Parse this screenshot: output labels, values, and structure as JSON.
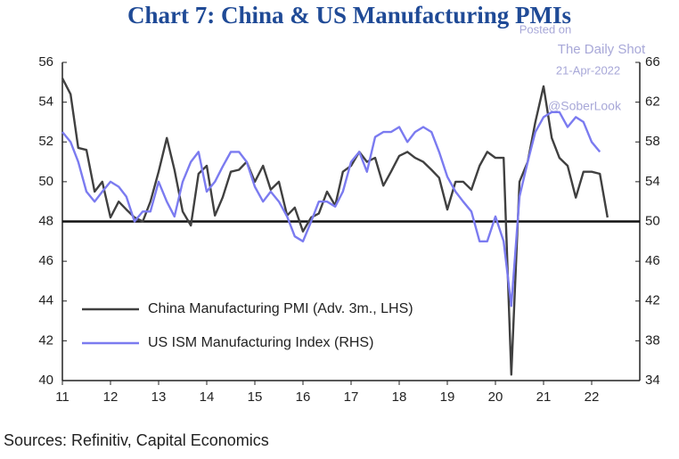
{
  "chart_data": {
    "type": "line",
    "title": "Chart 7: China & US Manufacturing PMIs",
    "watermark": [
      "Posted on",
      "The Daily Shot",
      "21-Apr-2022",
      "@SoberLook"
    ],
    "source": "Sources: Refinitiv, Capital Economics",
    "x": [
      2011,
      2011.17,
      2011.33,
      2011.5,
      2011.67,
      2011.83,
      2012,
      2012.17,
      2012.33,
      2012.5,
      2012.67,
      2012.83,
      2013,
      2013.17,
      2013.33,
      2013.5,
      2013.67,
      2013.83,
      2014,
      2014.17,
      2014.33,
      2014.5,
      2014.67,
      2014.83,
      2015,
      2015.17,
      2015.33,
      2015.5,
      2015.67,
      2015.83,
      2016,
      2016.17,
      2016.33,
      2016.5,
      2016.67,
      2016.83,
      2017,
      2017.17,
      2017.33,
      2017.5,
      2017.67,
      2017.83,
      2018,
      2018.17,
      2018.33,
      2018.5,
      2018.67,
      2018.83,
      2019,
      2019.17,
      2019.33,
      2019.5,
      2019.67,
      2019.83,
      2020,
      2020.17,
      2020.33,
      2020.5,
      2020.67,
      2020.83,
      2021,
      2021.17,
      2021.33,
      2021.5,
      2021.67,
      2021.83,
      2022,
      2022.17,
      2022.33
    ],
    "series": [
      {
        "name": "China Manufacturing PMI (Adv. 3m., LHS)",
        "color": "#404040",
        "axis": "y",
        "values": [
          55.2,
          54.4,
          51.7,
          51.6,
          49.5,
          50.0,
          48.2,
          49.0,
          48.6,
          48.2,
          48.0,
          49.0,
          50.5,
          52.2,
          50.6,
          48.5,
          47.8,
          50.4,
          50.8,
          48.3,
          49.2,
          50.5,
          50.6,
          51.0,
          50.0,
          50.8,
          49.6,
          50.0,
          48.3,
          48.7,
          47.5,
          48.2,
          48.4,
          49.5,
          48.8,
          50.5,
          50.8,
          51.5,
          51.0,
          51.2,
          49.8,
          50.5,
          51.3,
          51.5,
          51.2,
          51.0,
          50.6,
          50.2,
          48.6,
          50.0,
          50.0,
          49.6,
          50.8,
          51.5,
          51.2,
          51.2,
          40.3,
          50.0,
          51.0,
          53.0,
          54.8,
          52.2,
          51.2,
          50.8,
          49.2,
          50.5,
          50.5,
          50.4,
          48.2
        ]
      },
      {
        "name": "US ISM Manufacturing Index (RHS)",
        "color": "#7b7bf0",
        "axis": "y2",
        "values": [
          59,
          58,
          56,
          53,
          52,
          53,
          54,
          53.5,
          52.5,
          50,
          51,
          51,
          54,
          52,
          50.5,
          54,
          56,
          57,
          53,
          54,
          55.5,
          57,
          57,
          56,
          53.5,
          52,
          53,
          52,
          50.5,
          48.5,
          48,
          50,
          52,
          52,
          51.5,
          53,
          56,
          57,
          55,
          58.5,
          59,
          59,
          59.5,
          58,
          59,
          59.5,
          59,
          57,
          54.5,
          53,
          52,
          51,
          48,
          48,
          50.5,
          48,
          41.5,
          52.5,
          56,
          59,
          60.5,
          61,
          61,
          59.5,
          60.5,
          60,
          58,
          57,
          null
        ]
      }
    ],
    "xlim": [
      2011,
      2023
    ],
    "xticks": [
      {
        "value": 2011,
        "label": "11"
      },
      {
        "value": 2012,
        "label": "12"
      },
      {
        "value": 2013,
        "label": "13"
      },
      {
        "value": 2014,
        "label": "14"
      },
      {
        "value": 2015,
        "label": "15"
      },
      {
        "value": 2016,
        "label": "16"
      },
      {
        "value": 2017,
        "label": "17"
      },
      {
        "value": 2018,
        "label": "18"
      },
      {
        "value": 2019,
        "label": "19"
      },
      {
        "value": 2020,
        "label": "20"
      },
      {
        "value": 2021,
        "label": "21"
      },
      {
        "value": 2022,
        "label": "22"
      }
    ],
    "ylim": [
      40,
      56
    ],
    "yticks": [
      40,
      42,
      44,
      46,
      48,
      50,
      52,
      54,
      56
    ],
    "y2lim": [
      34,
      66
    ],
    "y2ticks": [
      34,
      38,
      42,
      46,
      50,
      54,
      58,
      62,
      66
    ],
    "reference_line": 48,
    "legend": "lower left"
  }
}
